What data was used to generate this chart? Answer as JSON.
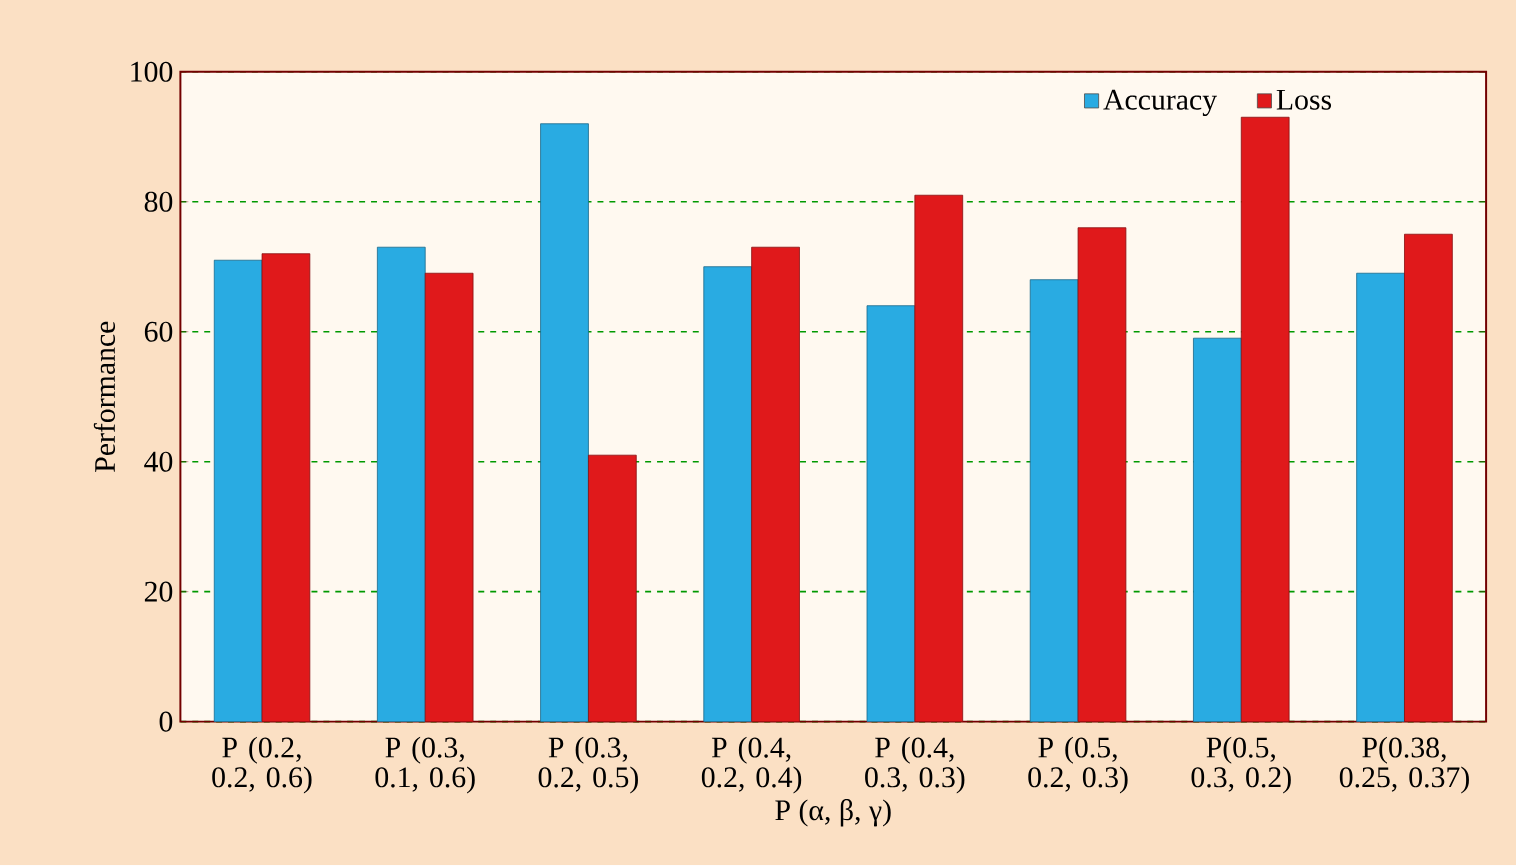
{
  "chart_data": {
    "type": "bar",
    "xlabel": "P (α, β, γ)",
    "ylabel": "Performance",
    "categories": [
      "P (0.2, 0.2, 0.6)",
      "P (0.3, 0.1, 0.6)",
      "P (0.3, 0.2, 0.5)",
      "P (0.4, 0.2, 0.4)",
      "P (0.4, 0.3, 0.3)",
      "P (0.5, 0.2, 0.3)",
      "P(0.5, 0.3, 0.2)",
      "P(0.38, 0.25, 0.37)"
    ],
    "series": [
      {
        "name": "Accuracy",
        "color": "#29abe2",
        "values": [
          71,
          73,
          92,
          70,
          64,
          68,
          59,
          69
        ]
      },
      {
        "name": "Loss",
        "color": "#e0191b",
        "values": [
          72,
          69,
          41,
          73,
          81,
          76,
          93,
          75
        ]
      }
    ],
    "ylim": [
      0,
      100
    ],
    "yticks": [
      0,
      20,
      40,
      60,
      80,
      100
    ],
    "grid": "y",
    "legend": "top right"
  }
}
